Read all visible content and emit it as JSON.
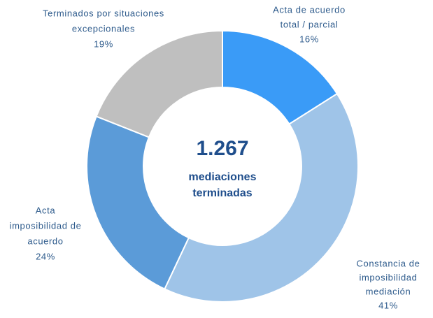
{
  "chart_data": {
    "type": "donut",
    "categories": [
      [
        "Acta de acuerdo",
        "total / parcial"
      ],
      [
        "Constancia de",
        "imposibilidad",
        "mediación"
      ],
      [
        "Acta",
        "imposibilidad de",
        "acuerdo"
      ],
      [
        "Terminados por situaciones",
        "excepcionales"
      ]
    ],
    "values": [
      16,
      41,
      24,
      19
    ],
    "value_labels": [
      "16%",
      "41%",
      "24%",
      "19%"
    ],
    "colors": [
      "#3a9bf7",
      "#9fc4e8",
      "#5b9bd8",
      "#bfbfbf"
    ],
    "center_value": "1.267",
    "center_text": [
      "mediaciones",
      "terminadas"
    ]
  }
}
